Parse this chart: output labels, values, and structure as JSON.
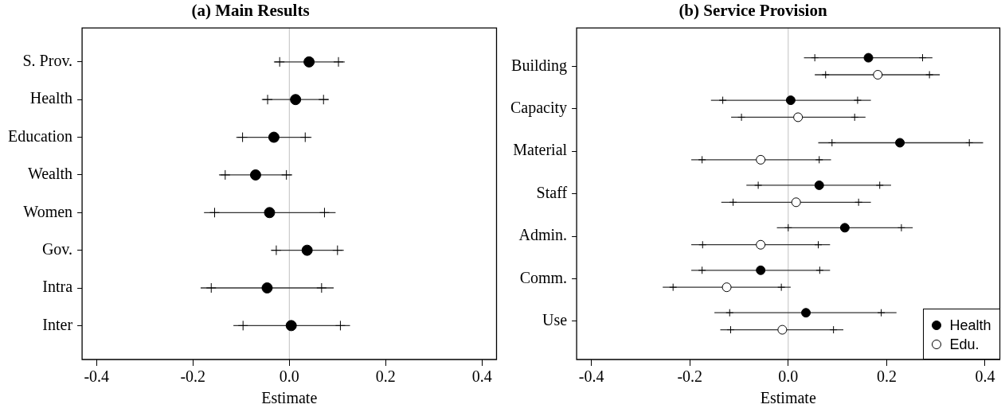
{
  "chart_data": [
    {
      "type": "scatter",
      "title": "(a) Main Results",
      "xlabel": "Estimate",
      "orientation": "horizontal",
      "categories": [
        "S. Prov.",
        "Health",
        "Education",
        "Wealth",
        "Women",
        "Gov.",
        "Intra",
        "Inter"
      ],
      "xlim": [
        -0.43,
        0.43
      ],
      "xticks": [
        -0.4,
        -0.2,
        {
          "value": 0,
          "label": "0.0"
        },
        0.2,
        0.4
      ],
      "ref_lines": [
        {
          "axis": "x",
          "value": 0,
          "color": "#c0c0c0"
        }
      ],
      "series": [
        {
          "color": "#000000",
          "marker": "circle",
          "values": [
            0.041,
            0.013,
            -0.032,
            -0.07,
            -0.041,
            0.037,
            -0.046,
            0.004
          ],
          "errors": [
            [
              -0.032,
              0.115
            ],
            [
              -0.057,
              0.082
            ],
            [
              -0.11,
              0.046
            ],
            [
              -0.146,
              0.006
            ],
            [
              -0.177,
              0.096
            ],
            [
              -0.038,
              0.113
            ],
            [
              -0.184,
              0.092
            ],
            [
              -0.116,
              0.126
            ]
          ]
        },
        {
          "color": "#000000",
          "marker": "cross",
          "values": [
            -0.02,
            -0.045,
            -0.097,
            -0.133,
            -0.155,
            -0.027,
            -0.162,
            -0.096
          ]
        },
        {
          "color": "#000000",
          "marker": "cross",
          "values": [
            0.102,
            0.071,
            0.033,
            -0.006,
            0.073,
            0.1,
            0.067,
            0.106
          ]
        }
      ]
    },
    {
      "type": "scatter",
      "title": "(b) Service Provision",
      "xlabel": "Estimate",
      "orientation": "horizontal",
      "legend": "bottom right",
      "categories": [
        "Building",
        "Capacity",
        "Material",
        "Staff",
        "Admin.",
        "Comm.",
        "Use"
      ],
      "xlim": [
        -0.43,
        0.43
      ],
      "xticks": [
        -0.4,
        -0.2,
        {
          "value": 0,
          "label": "0.0"
        },
        0.2,
        0.4
      ],
      "ref_lines": [
        {
          "axis": "x",
          "value": 0,
          "color": "#c0c0c0"
        }
      ],
      "series": [
        {
          "name": "Health",
          "color": "#000000",
          "marker": "circle",
          "values": [
            0.163,
            0.005,
            0.227,
            0.063,
            0.115,
            -0.056,
            0.036
          ],
          "errors": [
            [
              0.032,
              0.293
            ],
            [
              -0.157,
              0.168
            ],
            [
              0.061,
              0.396
            ],
            [
              -0.085,
              0.209
            ],
            [
              -0.023,
              0.253
            ],
            [
              -0.197,
              0.085
            ],
            [
              -0.15,
              0.22
            ]
          ]
        },
        {
          "name": "Edu.",
          "color": "#ffffff",
          "marker": "circle",
          "values": [
            0.182,
            0.02,
            -0.056,
            0.016,
            -0.056,
            -0.125,
            -0.012
          ],
          "errors": [
            [
              0.054,
              0.308
            ],
            [
              -0.116,
              0.157
            ],
            [
              -0.197,
              0.087
            ],
            [
              -0.136,
              0.168
            ],
            [
              -0.197,
              0.085
            ],
            [
              -0.255,
              0.005
            ],
            [
              -0.138,
              0.112
            ]
          ]
        },
        {
          "color": "#000000",
          "marker": "cross",
          "values": [
            0.054,
            -0.133,
            0.089,
            -0.061,
            0.0,
            -0.175,
            -0.119
          ]
        },
        {
          "color": "#000000",
          "marker": "cross",
          "values": [
            0.076,
            -0.095,
            -0.175,
            -0.112,
            -0.174,
            -0.234,
            -0.117
          ]
        },
        {
          "color": "#000000",
          "marker": "cross",
          "values": [
            0.273,
            0.141,
            0.368,
            0.186,
            0.23,
            0.064,
            0.189
          ]
        },
        {
          "color": "#000000",
          "marker": "cross",
          "values": [
            0.287,
            0.135,
            0.063,
            0.143,
            0.061,
            -0.014,
            0.092
          ]
        }
      ]
    }
  ]
}
